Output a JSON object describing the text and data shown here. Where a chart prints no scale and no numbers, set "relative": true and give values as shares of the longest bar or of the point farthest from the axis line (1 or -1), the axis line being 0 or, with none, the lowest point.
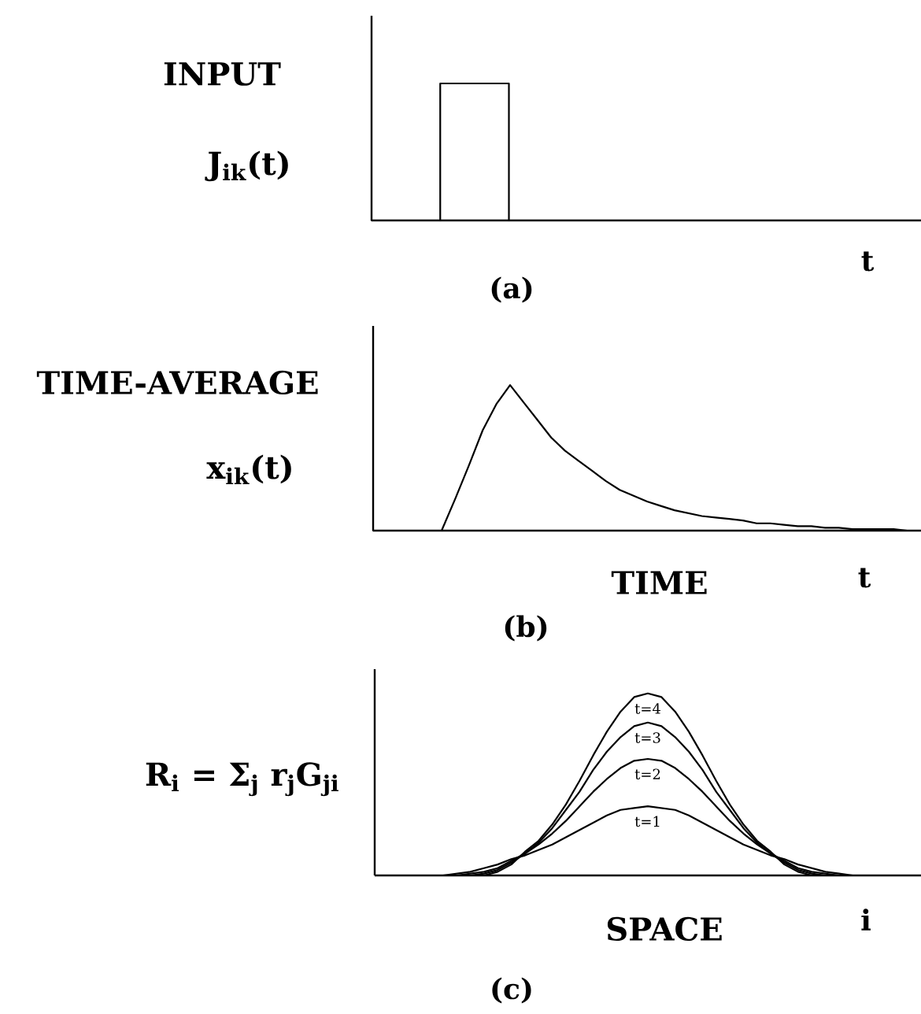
{
  "chart_data": [
    {
      "type": "step",
      "title": "INPUT",
      "ylabel": "J$_{ik}$(t)",
      "annotations": [
        "t",
        "(a)"
      ],
      "relative": true,
      "color": "#000000",
      "categories": [
        null,
        null,
        null,
        null,
        null,
        null,
        null,
        null,
        null
      ],
      "values": [
        0,
        1,
        0,
        0,
        0,
        0,
        0,
        0,
        0
      ]
    },
    {
      "type": "line",
      "title": "TIME-AVERAGE",
      "ylabel": "x$_{ik}$(t)",
      "xlabel": "TIME",
      "annotations": [
        "t",
        "(b)"
      ],
      "relative": true,
      "color": "#000000",
      "categories": [
        null,
        null,
        null,
        null,
        null,
        null,
        null,
        null,
        null,
        null,
        null,
        null,
        null,
        null,
        null,
        null,
        null,
        null,
        null,
        null,
        null,
        null,
        null,
        null,
        null,
        null,
        null,
        null,
        null,
        null,
        null,
        null,
        null,
        null,
        null,
        null,
        null,
        null,
        null,
        null,
        null
      ],
      "values": [
        0,
        0,
        0,
        0,
        0,
        0,
        0.22,
        0.45,
        0.69,
        0.87,
        1,
        0.88,
        0.76,
        0.64,
        0.55,
        0.48,
        0.41,
        0.34,
        0.28,
        0.24,
        0.2,
        0.17,
        0.14,
        0.12,
        0.1,
        0.09,
        0.08,
        0.07,
        0.05,
        0.05,
        0.04,
        0.03,
        0.03,
        0.02,
        0.02,
        0.01,
        0.01,
        0.01,
        0.01,
        0,
        0
      ]
    },
    {
      "type": "line",
      "ylabel": "R$_{i}$ = Σ$_{j}$ r$_{j}$G$_{ji}$",
      "xlabel": "SPACE",
      "annotations": [
        "i",
        "(c)"
      ],
      "relative": true,
      "categories": [
        null,
        null,
        null,
        null,
        null,
        null,
        null,
        null,
        null,
        null,
        null,
        null,
        null,
        null,
        null,
        null,
        null,
        null,
        null,
        null,
        null,
        null,
        null,
        null,
        null,
        null,
        null,
        null,
        null,
        null,
        null,
        null,
        null,
        null,
        null,
        null,
        null,
        null,
        null,
        null,
        null
      ],
      "series": [
        {
          "name": "t=1",
          "color": "#000000",
          "values": [
            null,
            null,
            null,
            null,
            null,
            0,
            0.01,
            0.02,
            0.04,
            0.06,
            0.09,
            0.11,
            0.14,
            0.17,
            0.21,
            0.25,
            0.29,
            0.33,
            0.36,
            0.37,
            0.38,
            0.37,
            0.36,
            0.33,
            0.29,
            0.25,
            0.21,
            0.17,
            0.14,
            0.11,
            0.09,
            0.06,
            0.04,
            0.02,
            0.01,
            0,
            null,
            null,
            null,
            null,
            null
          ]
        },
        {
          "name": "t=2",
          "color": "#000000",
          "values": [
            null,
            null,
            null,
            null,
            null,
            null,
            0,
            0.01,
            0.02,
            0.04,
            0.08,
            0.12,
            0.17,
            0.23,
            0.3,
            0.38,
            0.46,
            0.53,
            0.59,
            0.63,
            0.64,
            0.63,
            0.59,
            0.53,
            0.46,
            0.38,
            0.3,
            0.23,
            0.17,
            0.12,
            0.08,
            0.04,
            0.02,
            0.01,
            0,
            null,
            null,
            null,
            null,
            null,
            null
          ]
        },
        {
          "name": "t=3",
          "color": "#000000",
          "values": [
            null,
            null,
            null,
            null,
            null,
            null,
            null,
            0,
            0.01,
            0.03,
            0.07,
            0.12,
            0.18,
            0.26,
            0.36,
            0.46,
            0.58,
            0.68,
            0.76,
            0.82,
            0.84,
            0.82,
            0.76,
            0.68,
            0.58,
            0.46,
            0.36,
            0.26,
            0.18,
            0.12,
            0.07,
            0.03,
            0.01,
            0,
            null,
            null,
            null,
            null,
            null,
            null,
            null
          ]
        },
        {
          "name": "t=4",
          "color": "#000000",
          "values": [
            null,
            null,
            null,
            null,
            null,
            null,
            null,
            null,
            0,
            0.02,
            0.06,
            0.13,
            0.19,
            0.28,
            0.39,
            0.52,
            0.66,
            0.79,
            0.9,
            0.98,
            1,
            0.98,
            0.9,
            0.79,
            0.66,
            0.52,
            0.39,
            0.28,
            0.19,
            0.13,
            0.06,
            0.02,
            0,
            null,
            null,
            null,
            null,
            null,
            null,
            null,
            null
          ]
        }
      ]
    }
  ]
}
